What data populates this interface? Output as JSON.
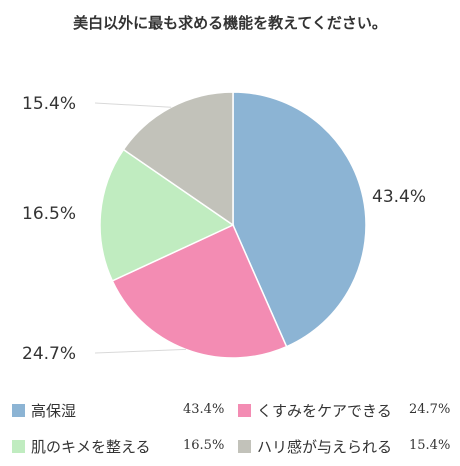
{
  "title": "美白以外に最も求める機能を教えてください。",
  "chart_data": {
    "type": "pie",
    "slices": [
      {
        "name": "高保湿",
        "value": 43.4,
        "label": "43.4%",
        "color": "#8cb4d4"
      },
      {
        "name": "くすみをケアできる",
        "value": 24.7,
        "label": "24.7%",
        "color": "#f38cb3"
      },
      {
        "name": "肌のキメを整える",
        "value": 16.5,
        "label": "16.5%",
        "color": "#c0ecc0"
      },
      {
        "name": "ハリ感が与えられる",
        "value": 15.4,
        "label": "15.4%",
        "color": "#c2c2ba"
      }
    ],
    "start_angle": "top, clockwise",
    "legend_position": "bottom"
  }
}
